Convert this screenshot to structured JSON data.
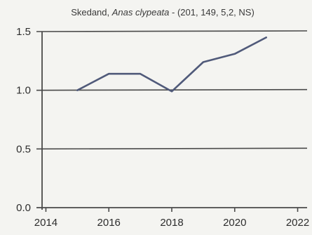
{
  "chart_data": {
    "type": "line",
    "title": {
      "species": "Skedand, ",
      "latin": "Anas clypeata",
      "stats": " - (201, 149, 5,2, NS)"
    },
    "xlabel": "",
    "ylabel": "",
    "xlim": [
      2013.7,
      2022.3
    ],
    "ylim": [
      0,
      1.5
    ],
    "x_ticks": [
      2014,
      2016,
      2018,
      2020,
      2022
    ],
    "x_tick_labels": [
      "2014",
      "2016",
      "2018",
      "2020",
      "2022"
    ],
    "y_ticks": [
      0.0,
      0.5,
      1.0,
      1.5
    ],
    "y_tick_labels": [
      "0.0",
      "0.5",
      "1.0",
      "1.5"
    ],
    "grid": "horizontal",
    "series": [
      {
        "x": [
          2015,
          2016,
          2017,
          2018,
          2019,
          2020,
          2021
        ],
        "y": [
          1.0,
          1.14,
          1.14,
          0.99,
          1.24,
          1.31,
          1.45
        ]
      }
    ],
    "colors": {
      "line": "#505a7a",
      "axis": "#4a4a4a",
      "background": "#f4f4f1"
    }
  }
}
